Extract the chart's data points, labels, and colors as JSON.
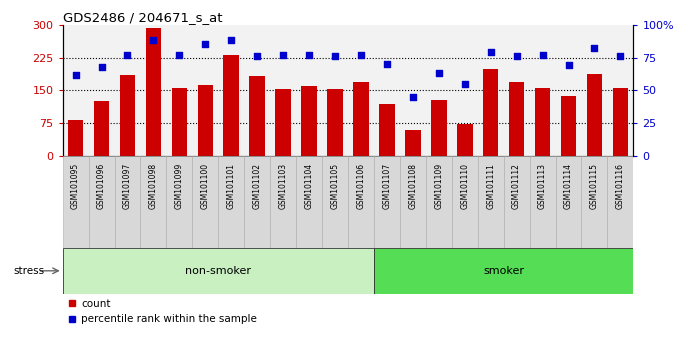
{
  "title": "GDS2486 / 204671_s_at",
  "samples": [
    "GSM101095",
    "GSM101096",
    "GSM101097",
    "GSM101098",
    "GSM101099",
    "GSM101100",
    "GSM101101",
    "GSM101102",
    "GSM101103",
    "GSM101104",
    "GSM101105",
    "GSM101106",
    "GSM101107",
    "GSM101108",
    "GSM101109",
    "GSM101110",
    "GSM101111",
    "GSM101112",
    "GSM101113",
    "GSM101114",
    "GSM101115",
    "GSM101116"
  ],
  "counts": [
    82,
    125,
    185,
    293,
    155,
    162,
    230,
    183,
    152,
    160,
    152,
    168,
    118,
    60,
    128,
    72,
    198,
    168,
    155,
    138,
    188,
    155
  ],
  "percentile": [
    62,
    68,
    77,
    88,
    77,
    85,
    88,
    76,
    77,
    77,
    76,
    77,
    70,
    45,
    63,
    55,
    79,
    76,
    77,
    69,
    82,
    76
  ],
  "group_labels": [
    "non-smoker",
    "smoker"
  ],
  "group_split": 12,
  "nonsmoker_color": "#C8F0C0",
  "smoker_color": "#55DD55",
  "bar_color": "#CC0000",
  "dot_color": "#0000CC",
  "left_ylim": [
    0,
    300
  ],
  "right_ylim": [
    0,
    100
  ],
  "left_yticks": [
    0,
    75,
    150,
    225,
    300
  ],
  "right_yticks": [
    0,
    25,
    50,
    75,
    100
  ],
  "right_yticklabels": [
    "0",
    "25",
    "50",
    "75",
    "100%"
  ],
  "hline_values": [
    75,
    150,
    225
  ],
  "stress_label": "stress",
  "legend_count_label": "count",
  "legend_pct_label": "percentile rank within the sample",
  "bg_plot_color": "#F2F2F2",
  "bg_outer_color": "#FFFFFF",
  "tick_bg_color": "#D8D8D8"
}
